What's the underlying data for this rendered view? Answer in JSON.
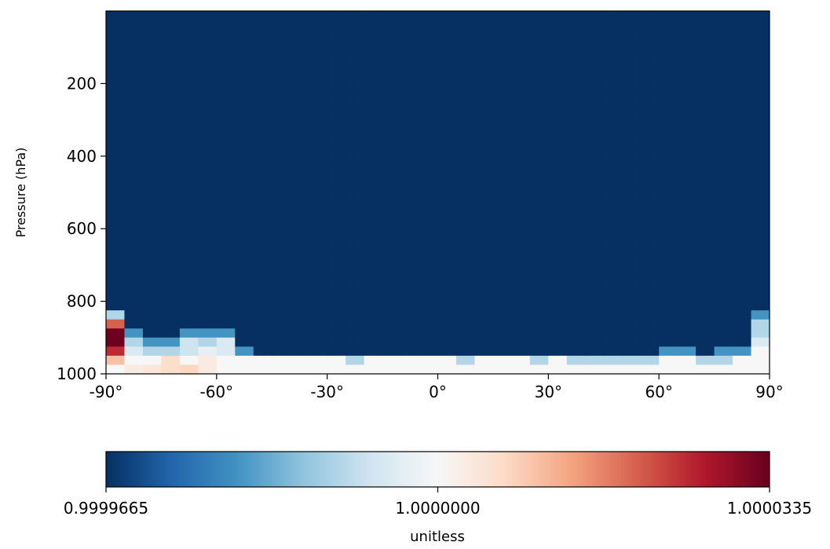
{
  "chart_data": {
    "type": "heatmap",
    "title": "",
    "xlabel": "",
    "ylabel": "Pressure (hPa)",
    "x_dimension": "latitude",
    "x_range": [
      -90,
      90
    ],
    "y_range": [
      1000,
      0
    ],
    "y_inverted": true,
    "x_ticks": [
      "-90°",
      "-60°",
      "-30°",
      "0°",
      "30°",
      "60°",
      "90°"
    ],
    "x_tick_values": [
      -90,
      -60,
      -30,
      0,
      30,
      60,
      90
    ],
    "y_ticks": [
      "200",
      "400",
      "600",
      "800",
      "1000"
    ],
    "y_tick_values": [
      200,
      400,
      600,
      800,
      1000
    ],
    "grid": false,
    "colormap": "RdBu_r",
    "color_range": [
      0.9999665,
      1.0000335
    ],
    "colorbar": {
      "orientation": "horizontal",
      "placement": "bottom",
      "label": "unitless",
      "tick_labels": [
        "0.9999665",
        "1.0000000",
        "1.0000335"
      ],
      "tick_values": [
        0.9999665,
        1.0,
        1.0000335
      ],
      "stops": [
        "#053061",
        "#2166ac",
        "#4393c3",
        "#92c5de",
        "#d1e5f0",
        "#f7f7f7",
        "#fddbc7",
        "#f4a582",
        "#d6604d",
        "#b2182b",
        "#67001f"
      ]
    },
    "n_lat_bins": 36,
    "n_lev_bins": 40,
    "default_value": 0.9999665,
    "surface_value": 1.0,
    "column_notes": "cols[i] lists [top_pressure_hPa, value] steps from that pressure down to the surface for latitude bin i (-90 to 90 in 5° steps). Pressure above the first step is default_value.",
    "cols": [
      [
        [
          820,
          0.99999
        ],
        [
          840,
          1.00001
        ],
        [
          850,
          1.00002
        ],
        [
          870,
          1.000028
        ],
        [
          880,
          1.000033
        ],
        [
          930,
          1.000025
        ],
        [
          950,
          1.00001
        ],
        [
          970,
          1.0
        ]
      ],
      [
        [
          880,
          0.99998
        ],
        [
          900,
          0.99999
        ],
        [
          930,
          0.999995
        ],
        [
          960,
          1.0
        ],
        [
          980,
          1.000003
        ]
      ],
      [
        [
          900,
          0.99998
        ],
        [
          920,
          0.99999
        ],
        [
          950,
          1.0
        ],
        [
          970,
          1.000004
        ]
      ],
      [
        [
          900,
          0.99998
        ],
        [
          930,
          0.99999
        ],
        [
          960,
          1.000006
        ]
      ],
      [
        [
          880,
          0.99998
        ],
        [
          910,
          0.999993
        ],
        [
          940,
          1.0
        ],
        [
          965,
          1.000007
        ]
      ],
      [
        [
          870,
          0.99998
        ],
        [
          900,
          0.99999
        ],
        [
          930,
          0.999997
        ],
        [
          960,
          1.000003
        ]
      ],
      [
        [
          880,
          0.99998
        ],
        [
          910,
          0.999995
        ],
        [
          950,
          1.0
        ]
      ],
      [
        [
          920,
          0.99998
        ],
        [
          940,
          0.999995
        ],
        [
          960,
          1.0
        ]
      ],
      [
        [
          940,
          0.99998
        ],
        [
          950,
          0.99999
        ],
        [
          960,
          1.0
        ]
      ],
      [
        [
          940,
          0.99998
        ],
        [
          955,
          1.0
        ]
      ],
      [
        [
          940,
          0.99998
        ],
        [
          955,
          1.0
        ]
      ],
      [
        [
          940,
          0.99998
        ],
        [
          955,
          1.0
        ]
      ],
      [
        [
          940,
          0.99998
        ],
        [
          950,
          0.999995
        ],
        [
          960,
          1.0
        ]
      ],
      [
        [
          940,
          0.99998
        ],
        [
          955,
          0.99999
        ],
        [
          965,
          1.0
        ]
      ],
      [
        [
          940,
          0.99998
        ],
        [
          955,
          1.0
        ]
      ],
      [
        [
          940,
          0.99999
        ],
        [
          955,
          1.0
        ]
      ],
      [
        [
          940,
          0.99998
        ],
        [
          950,
          1.0
        ]
      ],
      [
        [
          940,
          0.99999
        ],
        [
          955,
          1.0
        ]
      ],
      [
        [
          950,
          0.99999
        ],
        [
          960,
          1.0
        ]
      ],
      [
        [
          955,
          0.99999
        ],
        [
          965,
          1.0
        ]
      ],
      [
        [
          950,
          0.99998
        ],
        [
          960,
          1.0
        ]
      ],
      [
        [
          940,
          0.99998
        ],
        [
          955,
          1.0
        ]
      ],
      [
        [
          940,
          0.99998
        ],
        [
          955,
          1.0
        ]
      ],
      [
        [
          960,
          0.99999
        ],
        [
          970,
          1.0
        ]
      ],
      [
        [
          960,
          1.0
        ]
      ],
      [
        [
          955,
          0.99999
        ],
        [
          965,
          1.0
        ]
      ],
      [
        [
          955,
          0.99999
        ],
        [
          965,
          1.0
        ]
      ],
      [
        [
          955,
          0.99999
        ],
        [
          965,
          1.0
        ]
      ],
      [
        [
          940,
          0.99998
        ],
        [
          955,
          0.99999
        ],
        [
          965,
          1.0
        ]
      ],
      [
        [
          940,
          0.99998
        ],
        [
          955,
          0.99999
        ],
        [
          965,
          1.0
        ]
      ],
      [
        [
          920,
          0.99998
        ],
        [
          940,
          0.99999
        ],
        [
          960,
          1.0
        ]
      ],
      [
        [
          925,
          0.99998
        ],
        [
          945,
          0.99999
        ],
        [
          960,
          1.0
        ]
      ],
      [
        [
          940,
          0.99998
        ],
        [
          955,
          0.99999
        ],
        [
          965,
          1.0
        ]
      ],
      [
        [
          930,
          0.99998
        ],
        [
          950,
          0.99999
        ],
        [
          965,
          1.0
        ]
      ],
      [
        [
          920,
          0.99998
        ],
        [
          945,
          0.99999
        ],
        [
          960,
          1.0
        ]
      ],
      [
        [
          830,
          0.99998
        ],
        [
          860,
          0.99999
        ],
        [
          900,
          0.999995
        ],
        [
          930,
          1.0
        ]
      ]
    ]
  }
}
